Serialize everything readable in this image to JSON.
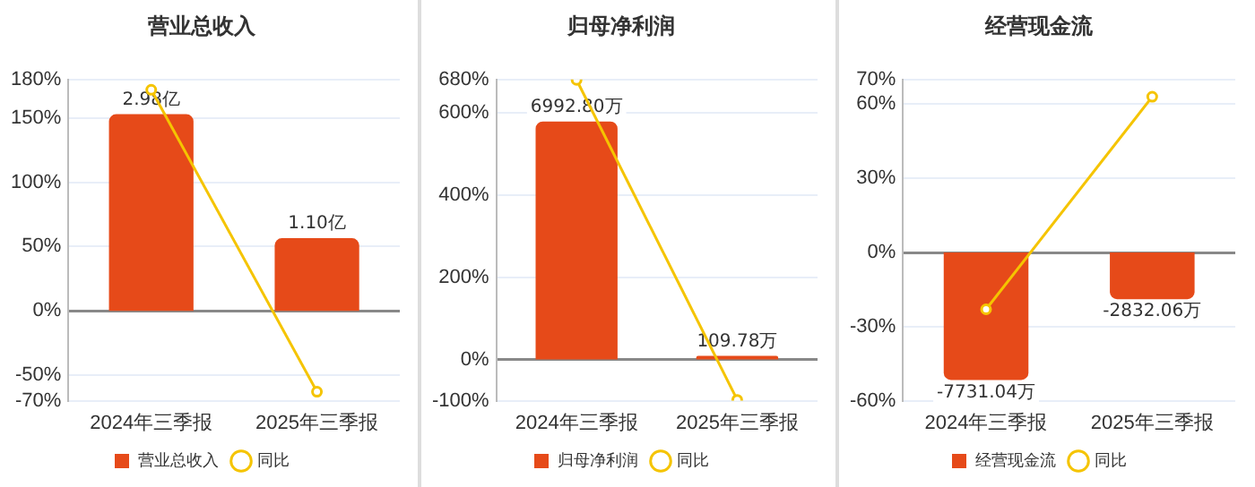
{
  "chart_data": [
    {
      "type": "bar",
      "title": "营业总收入",
      "categories": [
        "2024年三季报",
        "2025年三季报"
      ],
      "series": [
        {
          "name": "营业总收入",
          "axis": "y2",
          "color": "#e64a19",
          "values": [
            2.98,
            1.1
          ],
          "value_labels": [
            "2.98亿",
            "1.10亿"
          ]
        },
        {
          "name": "同比",
          "type": "line",
          "color": "#f5c400",
          "values": [
            172,
            -63
          ]
        }
      ],
      "ylim": [
        -70,
        180
      ],
      "yticks": [
        {
          "value": -70,
          "label": "-70%"
        },
        {
          "value": -50,
          "label": "-50%"
        },
        {
          "value": 0,
          "label": "0%"
        },
        {
          "value": 50,
          "label": "50%"
        },
        {
          "value": 100,
          "label": "100%"
        },
        {
          "value": 150,
          "label": "150%"
        },
        {
          "value": 180,
          "label": "180%"
        }
      ],
      "grid": "y",
      "legend": "bottom",
      "marker": "circle"
    },
    {
      "type": "bar",
      "title": "归母净利润",
      "categories": [
        "2024年三季报",
        "2025年三季报"
      ],
      "series": [
        {
          "name": "归母净利润",
          "axis": "y2",
          "color": "#e64a19",
          "values": [
            6992.8,
            109.78
          ],
          "value_labels": [
            "6992.80万",
            "109.78万"
          ]
        },
        {
          "name": "同比",
          "type": "line",
          "color": "#f5c400",
          "values": [
            679,
            -98
          ]
        }
      ],
      "ylim": [
        -100,
        680
      ],
      "yticks": [
        {
          "value": -100,
          "label": "-100%"
        },
        {
          "value": 0,
          "label": "0%"
        },
        {
          "value": 200,
          "label": "200%"
        },
        {
          "value": 400,
          "label": "400%"
        },
        {
          "value": 600,
          "label": "600%"
        },
        {
          "value": 680,
          "label": "680%"
        }
      ],
      "grid": "y",
      "legend": "bottom",
      "marker": "circle"
    },
    {
      "type": "bar",
      "title": "经营现金流",
      "categories": [
        "2024年三季报",
        "2025年三季报"
      ],
      "series": [
        {
          "name": "经营现金流",
          "axis": "y2",
          "color": "#e64a19",
          "values": [
            -7731.04,
            -2832.06
          ],
          "value_labels": [
            "-7731.04万",
            "-2832.06万"
          ]
        },
        {
          "name": "同比",
          "type": "line",
          "color": "#f5c400",
          "values": [
            -23,
            63
          ]
        }
      ],
      "ylim": [
        -60,
        70
      ],
      "yticks": [
        {
          "value": -60,
          "label": "-60%"
        },
        {
          "value": -30,
          "label": "-30%"
        },
        {
          "value": 0,
          "label": "0%"
        },
        {
          "value": 30,
          "label": "30%"
        },
        {
          "value": 60,
          "label": "60%"
        },
        {
          "value": 70,
          "label": "70%"
        }
      ],
      "grid": "y",
      "legend": "bottom",
      "marker": "circle"
    }
  ]
}
